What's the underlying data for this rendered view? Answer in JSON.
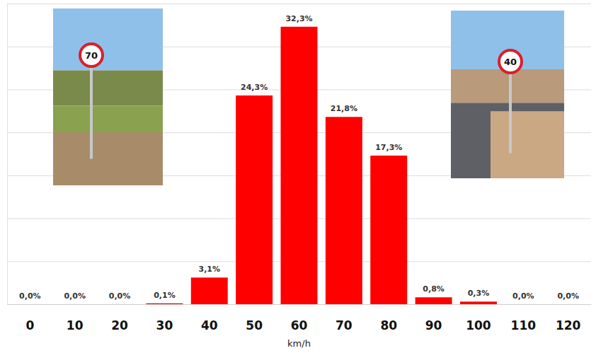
{
  "chart_data": {
    "type": "bar",
    "x_label": "km/h",
    "categories": [
      "0",
      "10",
      "20",
      "30",
      "40",
      "50",
      "60",
      "70",
      "80",
      "90",
      "100",
      "110",
      "120"
    ],
    "values": [
      0.0,
      0.0,
      0.0,
      0.1,
      3.1,
      24.3,
      32.3,
      21.8,
      17.3,
      0.8,
      0.3,
      0.0,
      0.0
    ],
    "value_labels": [
      "0,0%",
      "0,0%",
      "0,0%",
      "0,1%",
      "3,1%",
      "24,3%",
      "32,3%",
      "21,8%",
      "17,3%",
      "0,8%",
      "0,3%",
      "0,0%",
      "0,0%"
    ],
    "color": "#ff0000",
    "ylim": [
      0,
      35
    ],
    "yticks": [
      0,
      5,
      10,
      15,
      20,
      25,
      30,
      35
    ],
    "grid": true,
    "data_labels": true,
    "tick_labels": "x",
    "annotations": [
      "70",
      "40"
    ]
  }
}
